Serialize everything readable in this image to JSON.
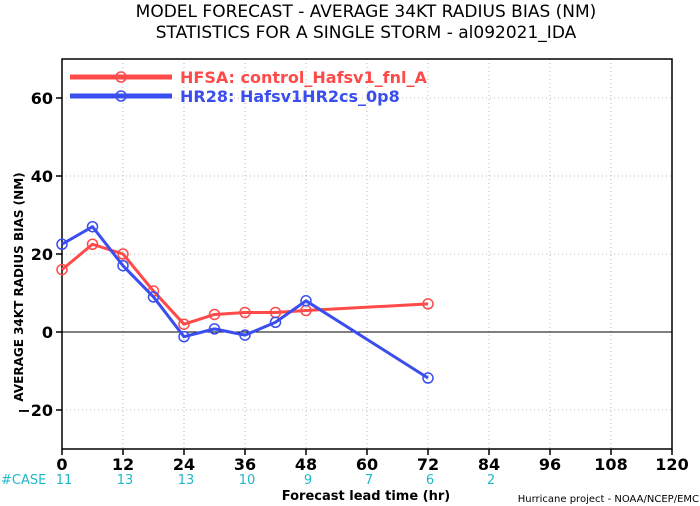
{
  "title": {
    "line1": "MODEL FORECAST - AVERAGE 34KT RADIUS BIAS (NM)",
    "line2": "STATISTICS FOR A SINGLE STORM - al092021_IDA"
  },
  "credit": "Hurricane project - NOAA/NCEP/EMC",
  "case_label": "#CASE",
  "chart_data": {
    "type": "line",
    "xlabel": "Forecast lead time (hr)",
    "ylabel": "AVERAGE 34KT RADIUS BIAS (NM)",
    "xlim": [
      0,
      120
    ],
    "ylim": [
      -30,
      70
    ],
    "x_ticks": [
      0,
      12,
      24,
      36,
      48,
      60,
      72,
      84,
      96,
      108,
      120
    ],
    "y_ticks": [
      -20,
      0,
      20,
      40,
      60
    ],
    "grid": true,
    "legend_position": "top-left",
    "series": [
      {
        "name": "HFSA: control_Hafsv1_fnl_A",
        "color": "#ff4a4a",
        "x": [
          0,
          6,
          12,
          18,
          24,
          30,
          36,
          42,
          48,
          72
        ],
        "y": [
          16,
          22.5,
          20,
          10.5,
          2,
          4.5,
          5,
          5,
          5.5,
          7.2
        ]
      },
      {
        "name": "HR28: Hafsv1HR2cs_0p8",
        "color": "#3a4ef0",
        "x": [
          0,
          6,
          12,
          18,
          24,
          30,
          36,
          42,
          48,
          72
        ],
        "y": [
          22.5,
          27,
          17,
          9,
          -1.2,
          0.8,
          -0.8,
          2.5,
          8,
          -11.8
        ]
      }
    ],
    "case_counts": [
      {
        "x": 0,
        "label": "11"
      },
      {
        "x": 12,
        "label": "13"
      },
      {
        "x": 24,
        "label": "13"
      },
      {
        "x": 36,
        "label": "10"
      },
      {
        "x": 48,
        "label": "9"
      },
      {
        "x": 60,
        "label": "7"
      },
      {
        "x": 72,
        "label": "6"
      },
      {
        "x": 84,
        "label": "2"
      }
    ]
  }
}
